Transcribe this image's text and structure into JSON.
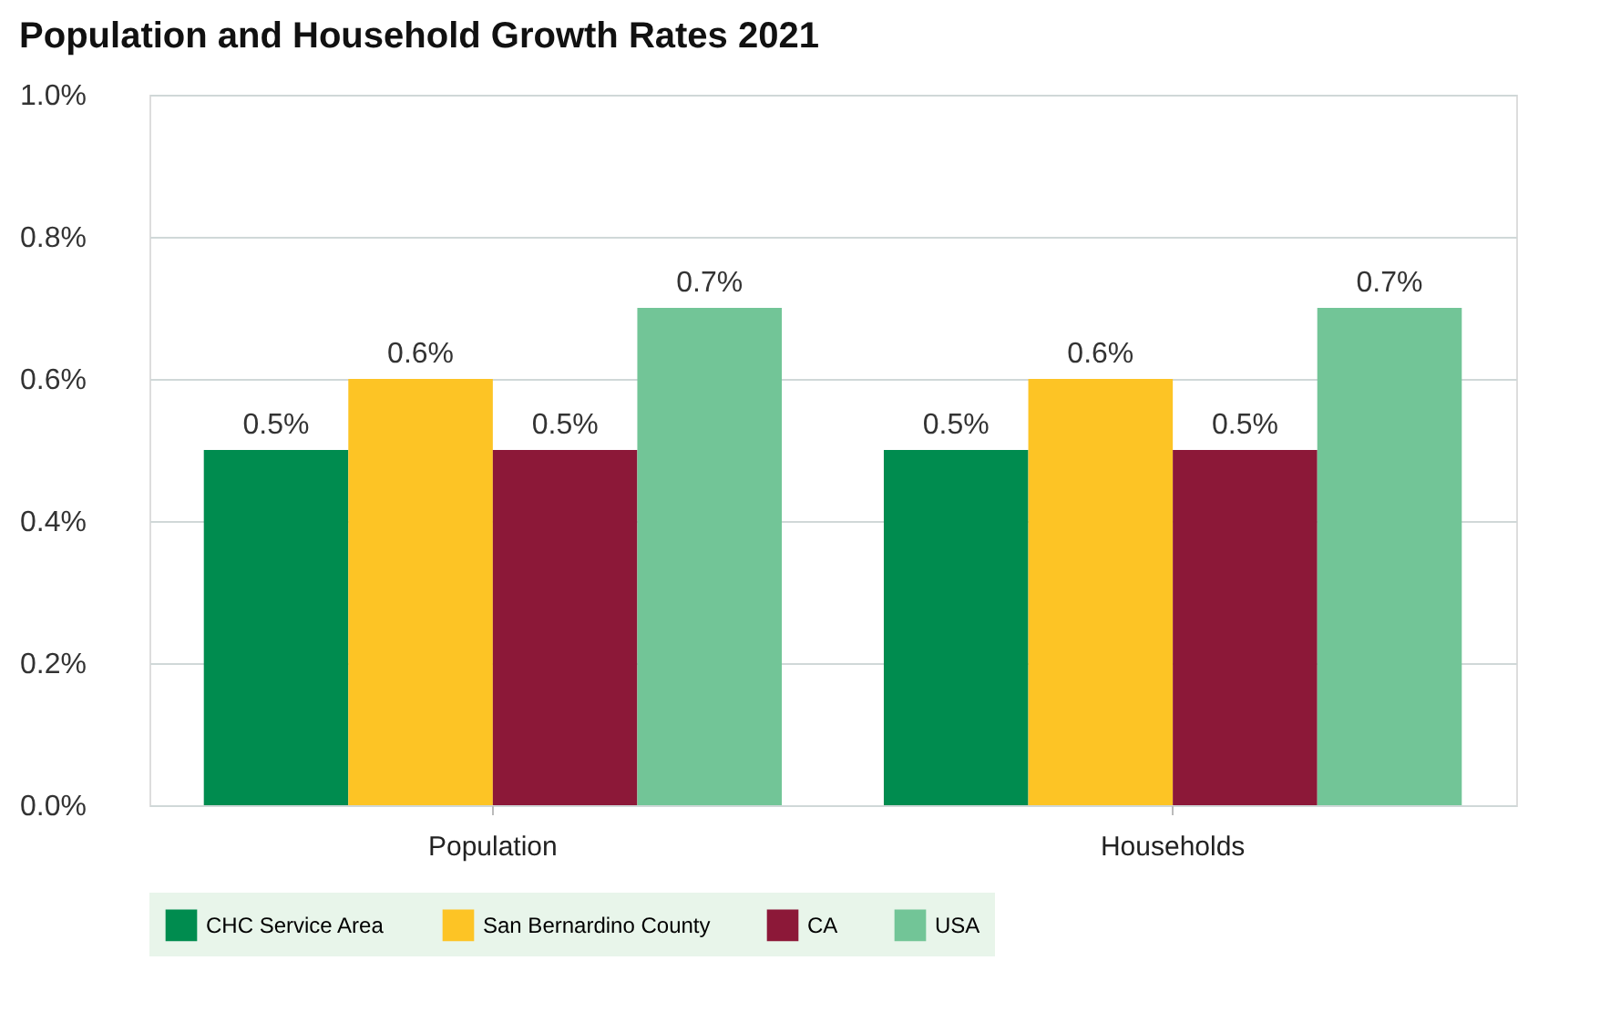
{
  "chart_data": {
    "type": "bar",
    "title": "Population and Household Growth Rates 2021",
    "categories": [
      "Population",
      "Households"
    ],
    "series": [
      {
        "name": "CHC Service Area",
        "color": "#008c4f",
        "values": [
          0.5,
          0.5
        ],
        "value_labels": [
          "0.5%",
          "0.5%"
        ]
      },
      {
        "name": "San Bernardino County",
        "color": "#fdc425",
        "values": [
          0.6,
          0.6
        ],
        "value_labels": [
          "0.6%",
          "0.6%"
        ]
      },
      {
        "name": "CA",
        "color": "#8c1838",
        "values": [
          0.5,
          0.5
        ],
        "value_labels": [
          "0.5%",
          "0.5%"
        ]
      },
      {
        "name": "USA",
        "color": "#72c597",
        "values": [
          0.7,
          0.7
        ],
        "value_labels": [
          "0.7%",
          "0.7%"
        ]
      }
    ],
    "ylim": [
      0,
      1.0
    ],
    "yticks": [
      {
        "value": 0,
        "label": "0.0%"
      },
      {
        "value": 0.2,
        "label": "0.2%"
      },
      {
        "value": 0.4,
        "label": "0.4%"
      },
      {
        "value": 0.6,
        "label": "0.6%"
      },
      {
        "value": 0.8,
        "label": "0.8%"
      },
      {
        "value": 1.0,
        "label": "1.0%"
      }
    ],
    "grid": "y",
    "legend": "bottom"
  }
}
